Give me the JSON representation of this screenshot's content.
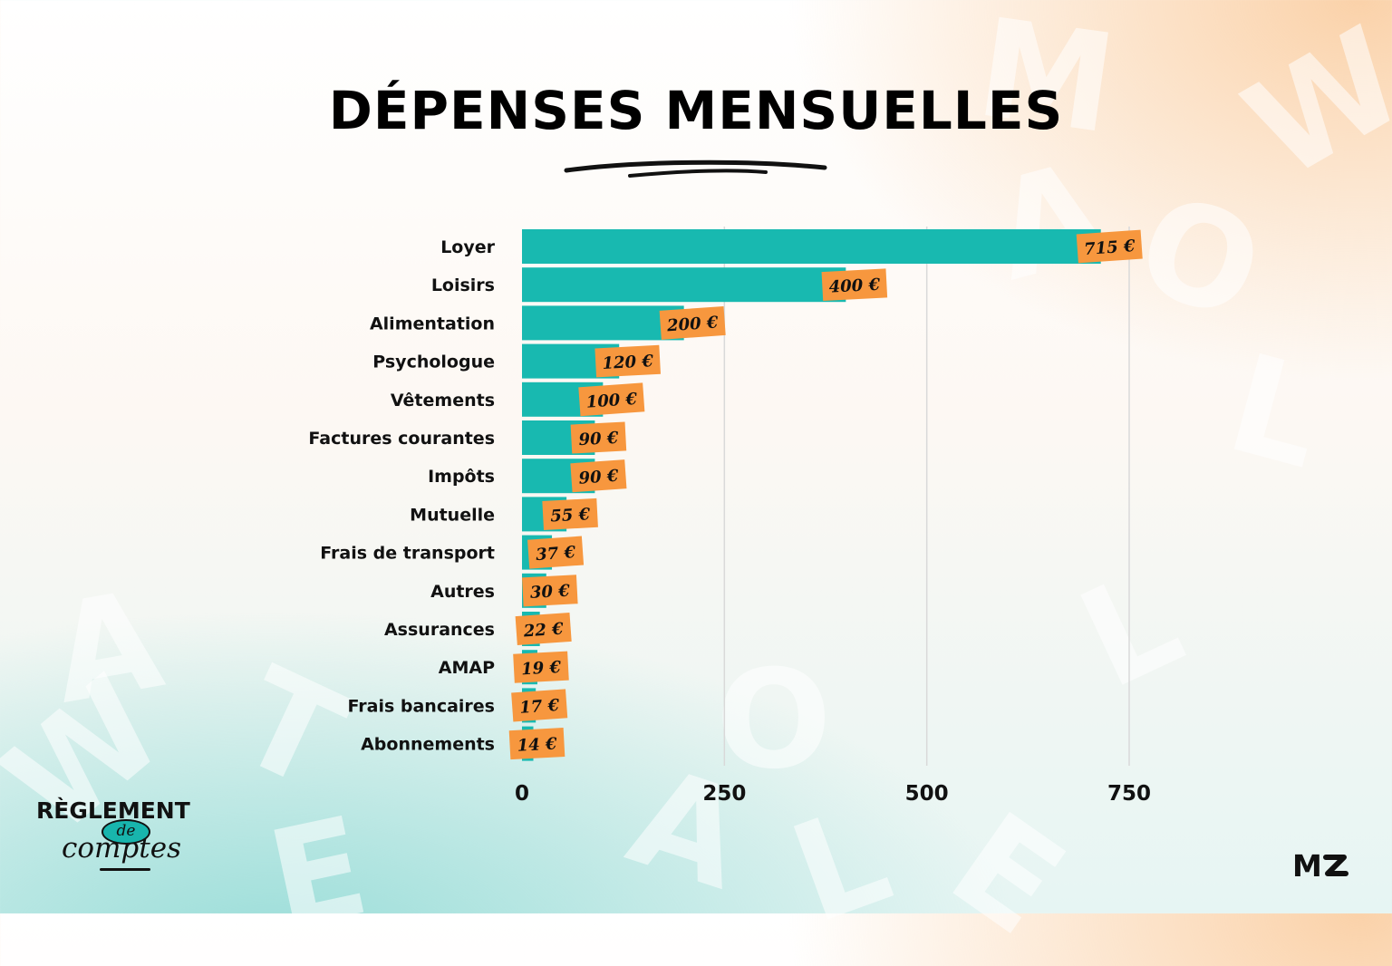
{
  "title": "DÉPENSES MENSUELLES",
  "brand_left": {
    "top": "RÈGLEMENT",
    "middle": "de",
    "bottom": "comptes"
  },
  "brand_right": "M",
  "colors": {
    "bar": "#18b9b0",
    "label_bg": "#f7973e",
    "grid": "#d9d9d9"
  },
  "chart_data": {
    "type": "bar",
    "orientation": "horizontal",
    "categories": [
      "Loyer",
      "Loisirs",
      "Alimentation",
      "Psychologue",
      "Vêtements",
      "Factures courantes",
      "Impôts",
      "Mutuelle",
      "Frais de transport",
      "Autres",
      "Assurances",
      "AMAP",
      "Frais bancaires",
      "Abonnements"
    ],
    "values": [
      715,
      400,
      200,
      120,
      100,
      90,
      90,
      55,
      37,
      30,
      22,
      19,
      17,
      14
    ],
    "value_labels": [
      "715 €",
      "400 €",
      "200 €",
      "120 €",
      "100 €",
      "90 €",
      "90 €",
      "55 €",
      "37 €",
      "30 €",
      "22 €",
      "19 €",
      "17 €",
      "14 €"
    ],
    "xlim": [
      0,
      750
    ],
    "xticks": [
      0,
      250,
      500,
      750
    ],
    "grid": true,
    "title": "DÉPENSES MENSUELLES"
  }
}
